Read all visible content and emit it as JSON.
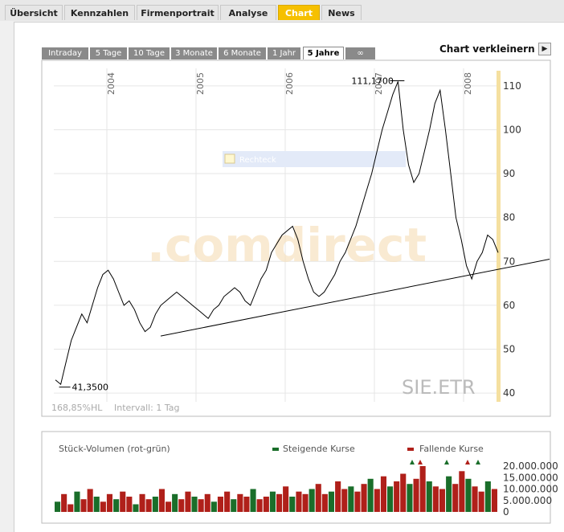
{
  "nav": {
    "tabs": [
      {
        "label": "Übersicht",
        "active": false
      },
      {
        "label": "Kennzahlen",
        "active": false
      },
      {
        "label": "Firmenportrait",
        "active": false
      },
      {
        "label": "Analyse",
        "active": false
      },
      {
        "label": "Chart",
        "active": true
      },
      {
        "label": "News",
        "active": false
      }
    ]
  },
  "periods": {
    "tabs": [
      {
        "label": "Intraday",
        "active": false
      },
      {
        "label": "5 Tage",
        "active": false
      },
      {
        "label": "10 Tage",
        "active": false
      },
      {
        "label": "3 Monate",
        "active": false
      },
      {
        "label": "6 Monate",
        "active": false
      },
      {
        "label": "1 Jahr",
        "active": false
      },
      {
        "label": "5 Jahre",
        "active": true
      },
      {
        "label": "∞",
        "active": false
      }
    ]
  },
  "controls": {
    "shrink_label": "Chart verkleinern",
    "shrink_icon": "play-right-icon"
  },
  "chart_data": [
    {
      "type": "line",
      "x_tick_labels": [
        "2004",
        "2005",
        "2006",
        "2007",
        "2008"
      ],
      "y_ticks": [
        40,
        50,
        60,
        70,
        80,
        90,
        100,
        110
      ],
      "ylim": [
        38,
        114
      ],
      "grid": true,
      "series": [
        {
          "values": [
            43,
            42,
            47,
            52,
            55,
            58,
            56,
            60,
            64,
            67,
            68,
            66,
            63,
            60,
            61,
            59,
            56,
            54,
            55,
            58,
            60,
            61,
            62,
            63,
            62,
            61,
            60,
            59,
            58,
            57,
            59,
            60,
            62,
            63,
            64,
            63,
            61,
            60,
            63,
            66,
            68,
            72,
            74,
            76,
            77,
            78,
            75,
            70,
            66,
            63,
            62,
            63,
            65,
            67,
            70,
            72,
            75,
            78,
            82,
            86,
            90,
            95,
            100,
            104,
            108,
            111,
            100,
            92,
            88,
            90,
            95,
            100,
            106,
            109,
            100,
            90,
            80,
            75,
            69,
            66,
            70,
            72,
            76,
            75,
            72
          ]
        }
      ],
      "max_label": "111,1700",
      "min_label": "41,3500",
      "trend_line": [
        [
          0,
          53
        ],
        [
          1,
          58
        ],
        [
          2,
          63
        ],
        [
          3,
          66
        ],
        [
          4,
          70
        ]
      ],
      "ticker": "SIE.ETR",
      "watermark": ".comdirect",
      "range_label": "168,85%HL",
      "interval_label": "Intervall: 1 Tag",
      "annotation_label": "Rechteck"
    },
    {
      "type": "bar",
      "title": "Stück-Volumen (rot-grün)",
      "legend": [
        {
          "name": "Steigende Kurse",
          "color": "#1a6e2a"
        },
        {
          "name": "Fallende Kurse",
          "color": "#b0201a"
        }
      ],
      "y_tick_labels": [
        "20.000.000",
        "15.000.000",
        "10.000.000",
        "5.000.000",
        "0"
      ],
      "ylim": [
        0,
        20000000
      ],
      "values": [
        4,
        7,
        3,
        8,
        5,
        9,
        6,
        4,
        7,
        5,
        8,
        6,
        3,
        7,
        5,
        6,
        9,
        4,
        7,
        5,
        8,
        6,
        5,
        7,
        4,
        6,
        8,
        5,
        7,
        6,
        9,
        5,
        6,
        8,
        7,
        10,
        6,
        8,
        7,
        9,
        11,
        7,
        8,
        12,
        9,
        10,
        8,
        11,
        13,
        9,
        14,
        10,
        12,
        15,
        11,
        13,
        18,
        12,
        10,
        9,
        14,
        11,
        16,
        13,
        10,
        8,
        12,
        9
      ]
    }
  ]
}
